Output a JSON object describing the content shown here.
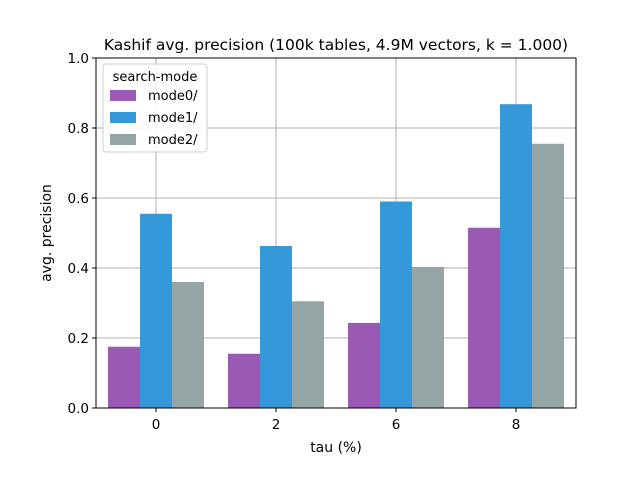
{
  "chart_data": {
    "type": "bar",
    "title": "Kashif avg. precision (100k tables, 4.9M vectors, k = 1.000)",
    "xlabel": "tau (%)",
    "ylabel": "avg. precision",
    "categories": [
      "0",
      "2",
      "6",
      "8"
    ],
    "ylim": [
      0.0,
      1.0
    ],
    "yticks": [
      "0.0",
      "0.2",
      "0.4",
      "0.6",
      "0.8",
      "1.0"
    ],
    "grid": true,
    "legend": {
      "title": "search-mode",
      "placement": "top-left"
    },
    "series": [
      {
        "name": "mode0/",
        "color": "#9b59b6",
        "values": [
          0.175,
          0.155,
          0.243,
          0.515
        ]
      },
      {
        "name": "mode1/",
        "color": "#3498db",
        "values": [
          0.555,
          0.463,
          0.59,
          0.868
        ]
      },
      {
        "name": "mode2/",
        "color": "#95a5a6",
        "values": [
          0.36,
          0.305,
          0.403,
          0.755
        ]
      }
    ]
  }
}
